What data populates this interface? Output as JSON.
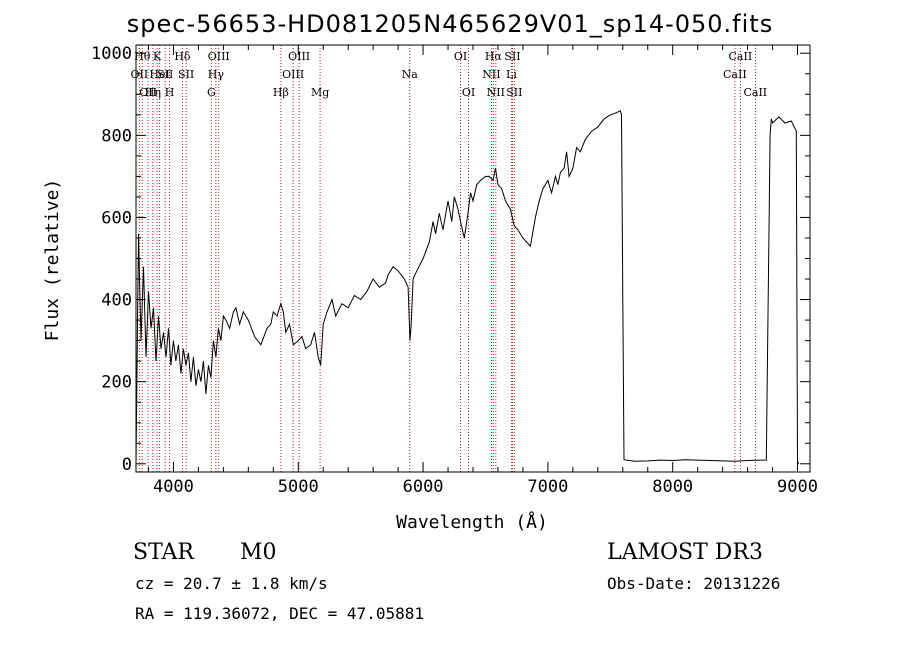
{
  "chart_data": {
    "type": "line",
    "title": "spec-56653-HD081205N465629V01_sp14-050.fits",
    "xlabel": "Wavelength (Å)",
    "ylabel": "Flux (relative)",
    "xlim": [
      3700,
      9100
    ],
    "ylim": [
      -20,
      1020
    ],
    "x_ticks": [
      4000,
      5000,
      6000,
      7000,
      8000,
      9000
    ],
    "x_tick_labels": [
      "4000",
      "5000",
      "6000",
      "7000",
      "8000",
      "9000"
    ],
    "y_ticks": [
      0,
      200,
      400,
      600,
      800,
      1000
    ],
    "y_tick_labels": [
      "0",
      "200",
      "400",
      "600",
      "800",
      "1000"
    ],
    "series": [
      {
        "name": "spectrum",
        "x": [
          3700,
          3720,
          3740,
          3760,
          3780,
          3800,
          3820,
          3840,
          3860,
          3880,
          3900,
          3920,
          3940,
          3960,
          3980,
          4000,
          4020,
          4040,
          4060,
          4080,
          4100,
          4120,
          4140,
          4160,
          4180,
          4200,
          4220,
          4240,
          4260,
          4280,
          4300,
          4320,
          4340,
          4360,
          4380,
          4400,
          4420,
          4450,
          4480,
          4500,
          4530,
          4560,
          4600,
          4650,
          4700,
          4750,
          4780,
          4800,
          4830,
          4860,
          4880,
          4900,
          4930,
          4960,
          5000,
          5030,
          5060,
          5100,
          5130,
          5160,
          5180,
          5200,
          5230,
          5270,
          5300,
          5350,
          5400,
          5450,
          5500,
          5550,
          5600,
          5650,
          5700,
          5720,
          5740,
          5760,
          5800,
          5850,
          5880,
          5895,
          5905,
          5920,
          5950,
          6000,
          6050,
          6080,
          6100,
          6130,
          6160,
          6200,
          6230,
          6250,
          6280,
          6300,
          6330,
          6360,
          6380,
          6400,
          6430,
          6460,
          6500,
          6530,
          6560,
          6580,
          6600,
          6630,
          6660,
          6700,
          6730,
          6760,
          6800,
          6830,
          6860,
          6900,
          6930,
          6960,
          7000,
          7030,
          7060,
          7080,
          7100,
          7130,
          7150,
          7170,
          7200,
          7230,
          7260,
          7300,
          7350,
          7400,
          7450,
          7500,
          7550,
          7580,
          7590,
          7600,
          7610,
          7650,
          7700,
          7800,
          7900,
          8000,
          8100,
          8200,
          8300,
          8400,
          8500,
          8600,
          8700,
          8750,
          8780,
          8790,
          8800,
          8850,
          8900,
          8950,
          8990,
          9000,
          9010
        ],
        "y": [
          0,
          560,
          300,
          480,
          260,
          420,
          330,
          380,
          250,
          360,
          280,
          320,
          260,
          330,
          240,
          300,
          250,
          290,
          220,
          280,
          240,
          270,
          200,
          260,
          190,
          230,
          200,
          250,
          170,
          240,
          210,
          300,
          260,
          330,
          300,
          360,
          350,
          330,
          370,
          380,
          340,
          370,
          350,
          310,
          290,
          330,
          340,
          370,
          360,
          390,
          370,
          320,
          340,
          290,
          300,
          310,
          280,
          290,
          320,
          260,
          240,
          340,
          370,
          400,
          360,
          390,
          380,
          410,
          400,
          420,
          450,
          430,
          440,
          460,
          470,
          480,
          470,
          450,
          430,
          300,
          340,
          450,
          470,
          500,
          540,
          590,
          560,
          610,
          570,
          640,
          590,
          650,
          620,
          590,
          550,
          610,
          660,
          640,
          680,
          690,
          700,
          700,
          690,
          720,
          680,
          670,
          640,
          620,
          580,
          570,
          550,
          540,
          530,
          600,
          640,
          670,
          690,
          660,
          700,
          680,
          710,
          720,
          760,
          700,
          720,
          770,
          760,
          790,
          810,
          820,
          840,
          850,
          855,
          860,
          850,
          400,
          10,
          8,
          6,
          7,
          9,
          8,
          10,
          9,
          8,
          7,
          6,
          8,
          9,
          9,
          800,
          840,
          830,
          845,
          830,
          835,
          810,
          5,
          0
        ]
      }
    ],
    "line_labels": [
      {
        "wavelength": 3727,
        "text": "OII",
        "row": 2
      },
      {
        "wavelength": 3750,
        "text": "Hθ",
        "row": 1
      },
      {
        "wavelength": 3797,
        "text": "OII",
        "row": 3
      },
      {
        "wavelength": 3835,
        "text": "Hη",
        "row": 3
      },
      {
        "wavelength": 3869,
        "text": "K",
        "row": 1
      },
      {
        "wavelength": 3889,
        "text": "HeI",
        "row": 2
      },
      {
        "wavelength": 3934,
        "text": "SII",
        "row": 2
      },
      {
        "wavelength": 3969,
        "text": "H",
        "row": 3
      },
      {
        "wavelength": 4072,
        "text": "Hδ",
        "row": 1
      },
      {
        "wavelength": 4102,
        "text": "SII",
        "row": 2
      },
      {
        "wavelength": 4304,
        "text": "G",
        "row": 3
      },
      {
        "wavelength": 4340,
        "text": "Hγ",
        "row": 2
      },
      {
        "wavelength": 4363,
        "text": "OIII",
        "row": 1
      },
      {
        "wavelength": 4861,
        "text": "Hβ",
        "row": 3
      },
      {
        "wavelength": 4959,
        "text": "OIII",
        "row": 2
      },
      {
        "wavelength": 5007,
        "text": "OIII",
        "row": 1
      },
      {
        "wavelength": 5175,
        "text": "Mg",
        "row": 3
      },
      {
        "wavelength": 5893,
        "text": "Na",
        "row": 2
      },
      {
        "wavelength": 6300,
        "text": "OI",
        "row": 1
      },
      {
        "wavelength": 6364,
        "text": "OI",
        "row": 3
      },
      {
        "wavelength": 6548,
        "text": "NII",
        "row": 2
      },
      {
        "wavelength": 6563,
        "text": "Hα",
        "row": 1
      },
      {
        "wavelength": 6583,
        "text": "NII",
        "row": 3
      },
      {
        "wavelength": 6708,
        "text": "Li",
        "row": 2
      },
      {
        "wavelength": 6716,
        "text": "SII",
        "row": 1
      },
      {
        "wavelength": 6731,
        "text": "SII",
        "row": 3
      },
      {
        "wavelength": 8498,
        "text": "CaII",
        "row": 2
      },
      {
        "wavelength": 8542,
        "text": "CaII",
        "row": 1
      },
      {
        "wavelength": 8662,
        "text": "CaII",
        "row": 3
      }
    ],
    "annotations": {
      "object_class": "STAR",
      "subclass": "M0",
      "survey": "LAMOST DR3",
      "redshift": "cz = 20.7 ± 1.8 km/s",
      "obs_date": "Obs-Date: 20131226",
      "coords": "RA = 119.36072, DEC =  47.05881"
    }
  },
  "colors": {
    "line_marker": "#b22222",
    "spectrum": "#000000",
    "axes": "#000000"
  }
}
